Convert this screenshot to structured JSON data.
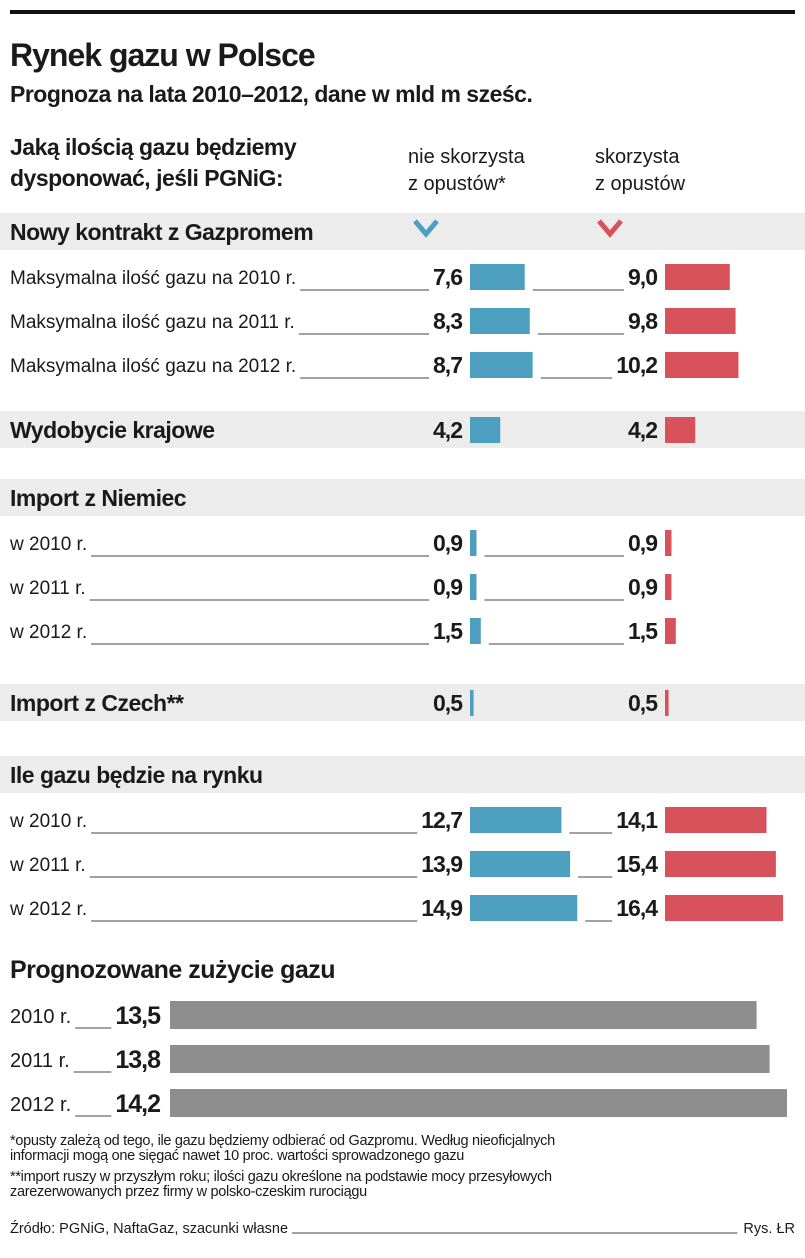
{
  "header": {
    "title": "Rynek gazu w Polsce",
    "subtitle": "Prognoza na lata 2010–2012, dane w mld m sześc."
  },
  "question": [
    "Jaką ilością gazu będziemy",
    "dysponować, jeśli PGNiG:"
  ],
  "columns": [
    {
      "name": [
        "nie skorzysta",
        "z opustów*"
      ],
      "color": "#4c9fbf"
    },
    {
      "name": [
        "skorzysta",
        "z opustów"
      ],
      "color": "#d8525b"
    }
  ],
  "sections": [
    {
      "title": "Nowy kontrakt z Gazpromem",
      "rows": [
        {
          "label": "Maksymalna ilość gazu na 2010 r.",
          "values": [
            7.6,
            9.0
          ],
          "value_labels": [
            "7,6",
            "9,0"
          ]
        },
        {
          "label": "Maksymalna ilość gazu na 2011 r.",
          "values": [
            8.3,
            9.8
          ],
          "value_labels": [
            "8,3",
            "9,8"
          ]
        },
        {
          "label": "Maksymalna ilość gazu na 2012 r.",
          "values": [
            8.7,
            10.2
          ],
          "value_labels": [
            "8,7",
            "10,2"
          ]
        }
      ]
    },
    {
      "title": "Wydobycie krajowe",
      "values": [
        4.2,
        4.2
      ],
      "value_labels": [
        "4,2",
        "4,2"
      ]
    },
    {
      "title": "Import z Niemiec",
      "rows": [
        {
          "label": "w 2010 r.",
          "values": [
            0.9,
            0.9
          ],
          "value_labels": [
            "0,9",
            "0,9"
          ]
        },
        {
          "label": "w 2011 r.",
          "values": [
            0.9,
            0.9
          ],
          "value_labels": [
            "0,9",
            "0,9"
          ]
        },
        {
          "label": "w 2012 r.",
          "values": [
            1.5,
            1.5
          ],
          "value_labels": [
            "1,5",
            "1,5"
          ]
        }
      ]
    },
    {
      "title": "Import z Czech**",
      "values": [
        0.5,
        0.5
      ],
      "value_labels": [
        "0,5",
        "0,5"
      ]
    },
    {
      "title": "Ile gazu będzie na rynku",
      "rows": [
        {
          "label": "w 2010 r.",
          "values": [
            12.7,
            14.1
          ],
          "value_labels": [
            "12,7",
            "14,1"
          ]
        },
        {
          "label": "w 2011 r.",
          "values": [
            13.9,
            15.4
          ],
          "value_labels": [
            "13,9",
            "15,4"
          ]
        },
        {
          "label": "w 2012 r.",
          "values": [
            14.9,
            16.4
          ],
          "value_labels": [
            "14,9",
            "16,4"
          ]
        }
      ]
    }
  ],
  "consumption": {
    "title": "Prognozowane zużycie gazu",
    "color": "#8e8e8e",
    "rows": [
      {
        "label": "2010 r.",
        "value": 13.5,
        "value_label": "13,5"
      },
      {
        "label": "2011 r.",
        "value": 13.8,
        "value_label": "13,8"
      },
      {
        "label": "2012 r.",
        "value": 14.2,
        "value_label": "14,2"
      }
    ]
  },
  "notes": [
    [
      "*opusty zależą od tego, ile gazu będziemy odbierać od Gazpromu. Według nieoficjalnych",
      "informacji mogą one sięgać nawet 10 proc. wartości sprowadzonego gazu"
    ],
    [
      "**import ruszy w przyszłym roku; ilości gazu określone na podstawie mocy przesyłowych",
      "zarezerwowanych przez firmy w polsko-czeskim rurociągu"
    ]
  ],
  "source": "Źródło: PGNiG, NaftaGaz, szacunki własne",
  "credit": "Rys. ŁR"
}
